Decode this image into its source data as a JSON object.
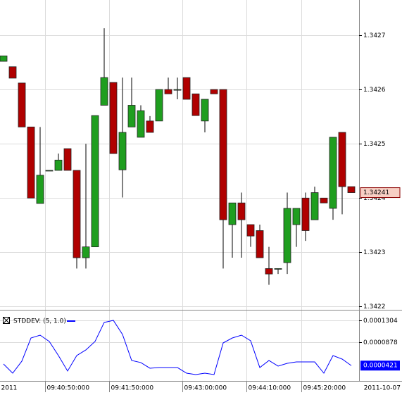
{
  "chart_data": [
    {
      "type": "candlestick",
      "categories": [
        "2011",
        null,
        null,
        null,
        null,
        "09:40:50:000",
        null,
        null,
        null,
        null,
        null,
        null,
        "09:41:50:000",
        null,
        null,
        null,
        null,
        null,
        null,
        null,
        "09:43:00:000",
        null,
        null,
        null,
        null,
        null,
        null,
        "09:44:10:000",
        null,
        null,
        null,
        null,
        null,
        "09:45:20:000",
        null,
        null,
        null,
        null,
        null
      ],
      "open": [
        1.342652,
        1.342642,
        1.342612,
        1.342531,
        1.34239,
        1.342451,
        1.342451,
        1.342491,
        1.342451,
        1.34229,
        1.34231,
        1.342571,
        1.342613,
        1.342452,
        1.342531,
        1.342512,
        1.342542,
        1.342542,
        1.3426,
        1.3426,
        1.342622,
        1.342592,
        1.342542,
        1.3426,
        1.3426,
        1.342351,
        1.342391,
        1.342351,
        1.34234,
        1.34227,
        1.34227,
        1.342281,
        1.342351,
        1.3424,
        1.34236,
        1.3424,
        1.342381,
        1.342521,
        1.342421
      ],
      "high": [
        1.342662,
        1.342642,
        1.342612,
        1.342531,
        1.342531,
        1.342451,
        1.342482,
        1.342491,
        1.342451,
        1.3425,
        1.342552,
        1.342713,
        1.342613,
        1.342622,
        1.342622,
        1.342571,
        1.342551,
        1.3426,
        1.342622,
        1.342622,
        1.342622,
        1.342592,
        1.342582,
        1.3426,
        1.3426,
        1.342391,
        1.34241,
        1.342351,
        1.342351,
        1.34231,
        1.34227,
        1.34241,
        1.342381,
        1.34241,
        1.342421,
        1.3424,
        1.342512,
        1.342521,
        1.342421
      ],
      "low": [
        1.342652,
        1.342621,
        1.342531,
        1.3424,
        1.34239,
        1.342451,
        1.342451,
        1.342451,
        1.34227,
        1.34227,
        1.34231,
        1.342571,
        1.342482,
        1.342401,
        1.342531,
        1.342512,
        1.342521,
        1.342542,
        1.342592,
        1.342582,
        1.342582,
        1.342552,
        1.342521,
        1.342592,
        1.34227,
        1.34229,
        1.34229,
        1.34231,
        1.34229,
        1.34224,
        1.34226,
        1.34226,
        1.34231,
        1.342321,
        1.34236,
        1.342391,
        1.34236,
        1.34237,
        1.34241
      ],
      "close": [
        1.342662,
        1.342621,
        1.342531,
        1.3424,
        1.342442,
        1.342451,
        1.34247,
        1.342451,
        1.34229,
        1.34231,
        1.342552,
        1.342622,
        1.342482,
        1.342521,
        1.342571,
        1.342561,
        1.342521,
        1.3426,
        1.342592,
        1.3426,
        1.342582,
        1.342552,
        1.342582,
        1.342592,
        1.34236,
        1.342391,
        1.34236,
        1.34233,
        1.34229,
        1.34226,
        1.34227,
        1.342381,
        1.342381,
        1.34234,
        1.34241,
        1.342391,
        1.342512,
        1.342421,
        1.34241
      ],
      "up_color": "#1f9e1f",
      "down_color": "#b00000",
      "ylim": [
        1.342194,
        1.342765
      ],
      "yticks": [
        1.3427,
        1.3426,
        1.3425,
        1.3424,
        1.3423,
        1.3422
      ],
      "grid": true,
      "date_label": "2011-10-07"
    },
    {
      "type": "line",
      "name": "STDDEV: (5, 1.0)",
      "color": "#0000ff",
      "values": [
        4.52e-05,
        2.73e-05,
        5.07e-05,
        9.6e-05,
        0.0001015,
        8.92e-05,
        6.17e-05,
        3.15e-05,
        6.17e-05,
        7.27e-05,
        8.92e-05,
        0.0001263,
        0.0001304,
        0.0001029,
        5.21e-05,
        4.8e-05,
        3.7e-05,
        3.83e-05,
        3.83e-05,
        3.83e-05,
        2.73e-05,
        2.46e-05,
        2.73e-05,
        2.46e-05,
        8.64e-05,
        9.6e-05,
        0.0001015,
        9.06e-05,
        3.83e-05,
        5.21e-05,
        4.11e-05,
        4.66e-05,
        4.93e-05,
        4.93e-05,
        4.93e-05,
        2.73e-05,
        6.17e-05,
        5.48e-05,
        4.21e-05
      ],
      "ylim": [
        1.22e-05,
        0.0001496
      ],
      "yticks": [
        0.0001304,
        8.78e-05
      ],
      "grid": true
    }
  ]
}
